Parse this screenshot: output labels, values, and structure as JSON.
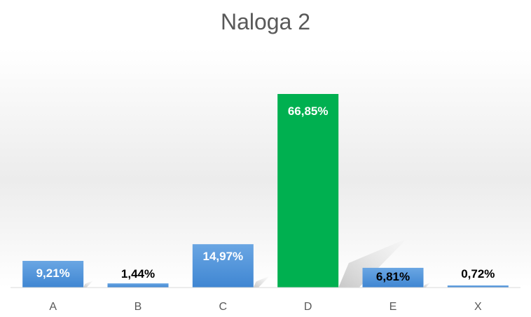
{
  "chart_data": {
    "type": "bar",
    "title": "Naloga 2",
    "categories": [
      "A",
      "B",
      "C",
      "D",
      "E",
      "X"
    ],
    "values": [
      9.21,
      1.44,
      14.97,
      66.85,
      6.81,
      0.72
    ],
    "data_labels": [
      "9,21%",
      "1,44%",
      "14,97%",
      "66,85%",
      "6,81%",
      "0,72%"
    ],
    "highlighted_category": "D",
    "ylim": [
      0,
      100
    ],
    "grid": false,
    "legend": "none",
    "colors": {
      "bar": "#4a90d9",
      "bar_light": "#6aa6e3",
      "highlight": "#00b050",
      "label_dark": "#000000",
      "label_light": "#ffffff",
      "axis": "#d9d9d9"
    }
  }
}
